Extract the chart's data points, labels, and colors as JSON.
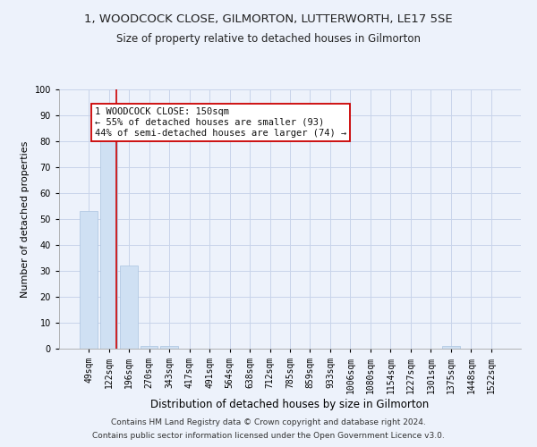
{
  "title": "1, WOODCOCK CLOSE, GILMORTON, LUTTERWORTH, LE17 5SE",
  "subtitle": "Size of property relative to detached houses in Gilmorton",
  "xlabel": "Distribution of detached houses by size in Gilmorton",
  "ylabel": "Number of detached properties",
  "bar_labels": [
    "49sqm",
    "122sqm",
    "196sqm",
    "270sqm",
    "343sqm",
    "417sqm",
    "491sqm",
    "564sqm",
    "638sqm",
    "712sqm",
    "785sqm",
    "859sqm",
    "933sqm",
    "1006sqm",
    "1080sqm",
    "1154sqm",
    "1227sqm",
    "1301sqm",
    "1375sqm",
    "1448sqm",
    "1522sqm"
  ],
  "bar_values": [
    53,
    81,
    32,
    1,
    1,
    0,
    0,
    0,
    0,
    0,
    0,
    0,
    0,
    0,
    0,
    0,
    0,
    0,
    1,
    0,
    0
  ],
  "bar_color": "#cfe0f3",
  "bar_edge_color": "#aac4e0",
  "grid_color": "#c8d4ea",
  "background_color": "#edf2fb",
  "vline_x": 1.36,
  "vline_color": "#cc0000",
  "annotation_text": "1 WOODCOCK CLOSE: 150sqm\n← 55% of detached houses are smaller (93)\n44% of semi-detached houses are larger (74) →",
  "annotation_box_color": "#ffffff",
  "annotation_box_edge": "#cc0000",
  "ylim": [
    0,
    100
  ],
  "yticks": [
    0,
    10,
    20,
    30,
    40,
    50,
    60,
    70,
    80,
    90,
    100
  ],
  "footnote1": "Contains HM Land Registry data © Crown copyright and database right 2024.",
  "footnote2": "Contains public sector information licensed under the Open Government Licence v3.0.",
  "title_fontsize": 9.5,
  "subtitle_fontsize": 8.5,
  "xlabel_fontsize": 8.5,
  "ylabel_fontsize": 8,
  "tick_fontsize": 7,
  "annotation_fontsize": 7.5,
  "footnote_fontsize": 6.5
}
